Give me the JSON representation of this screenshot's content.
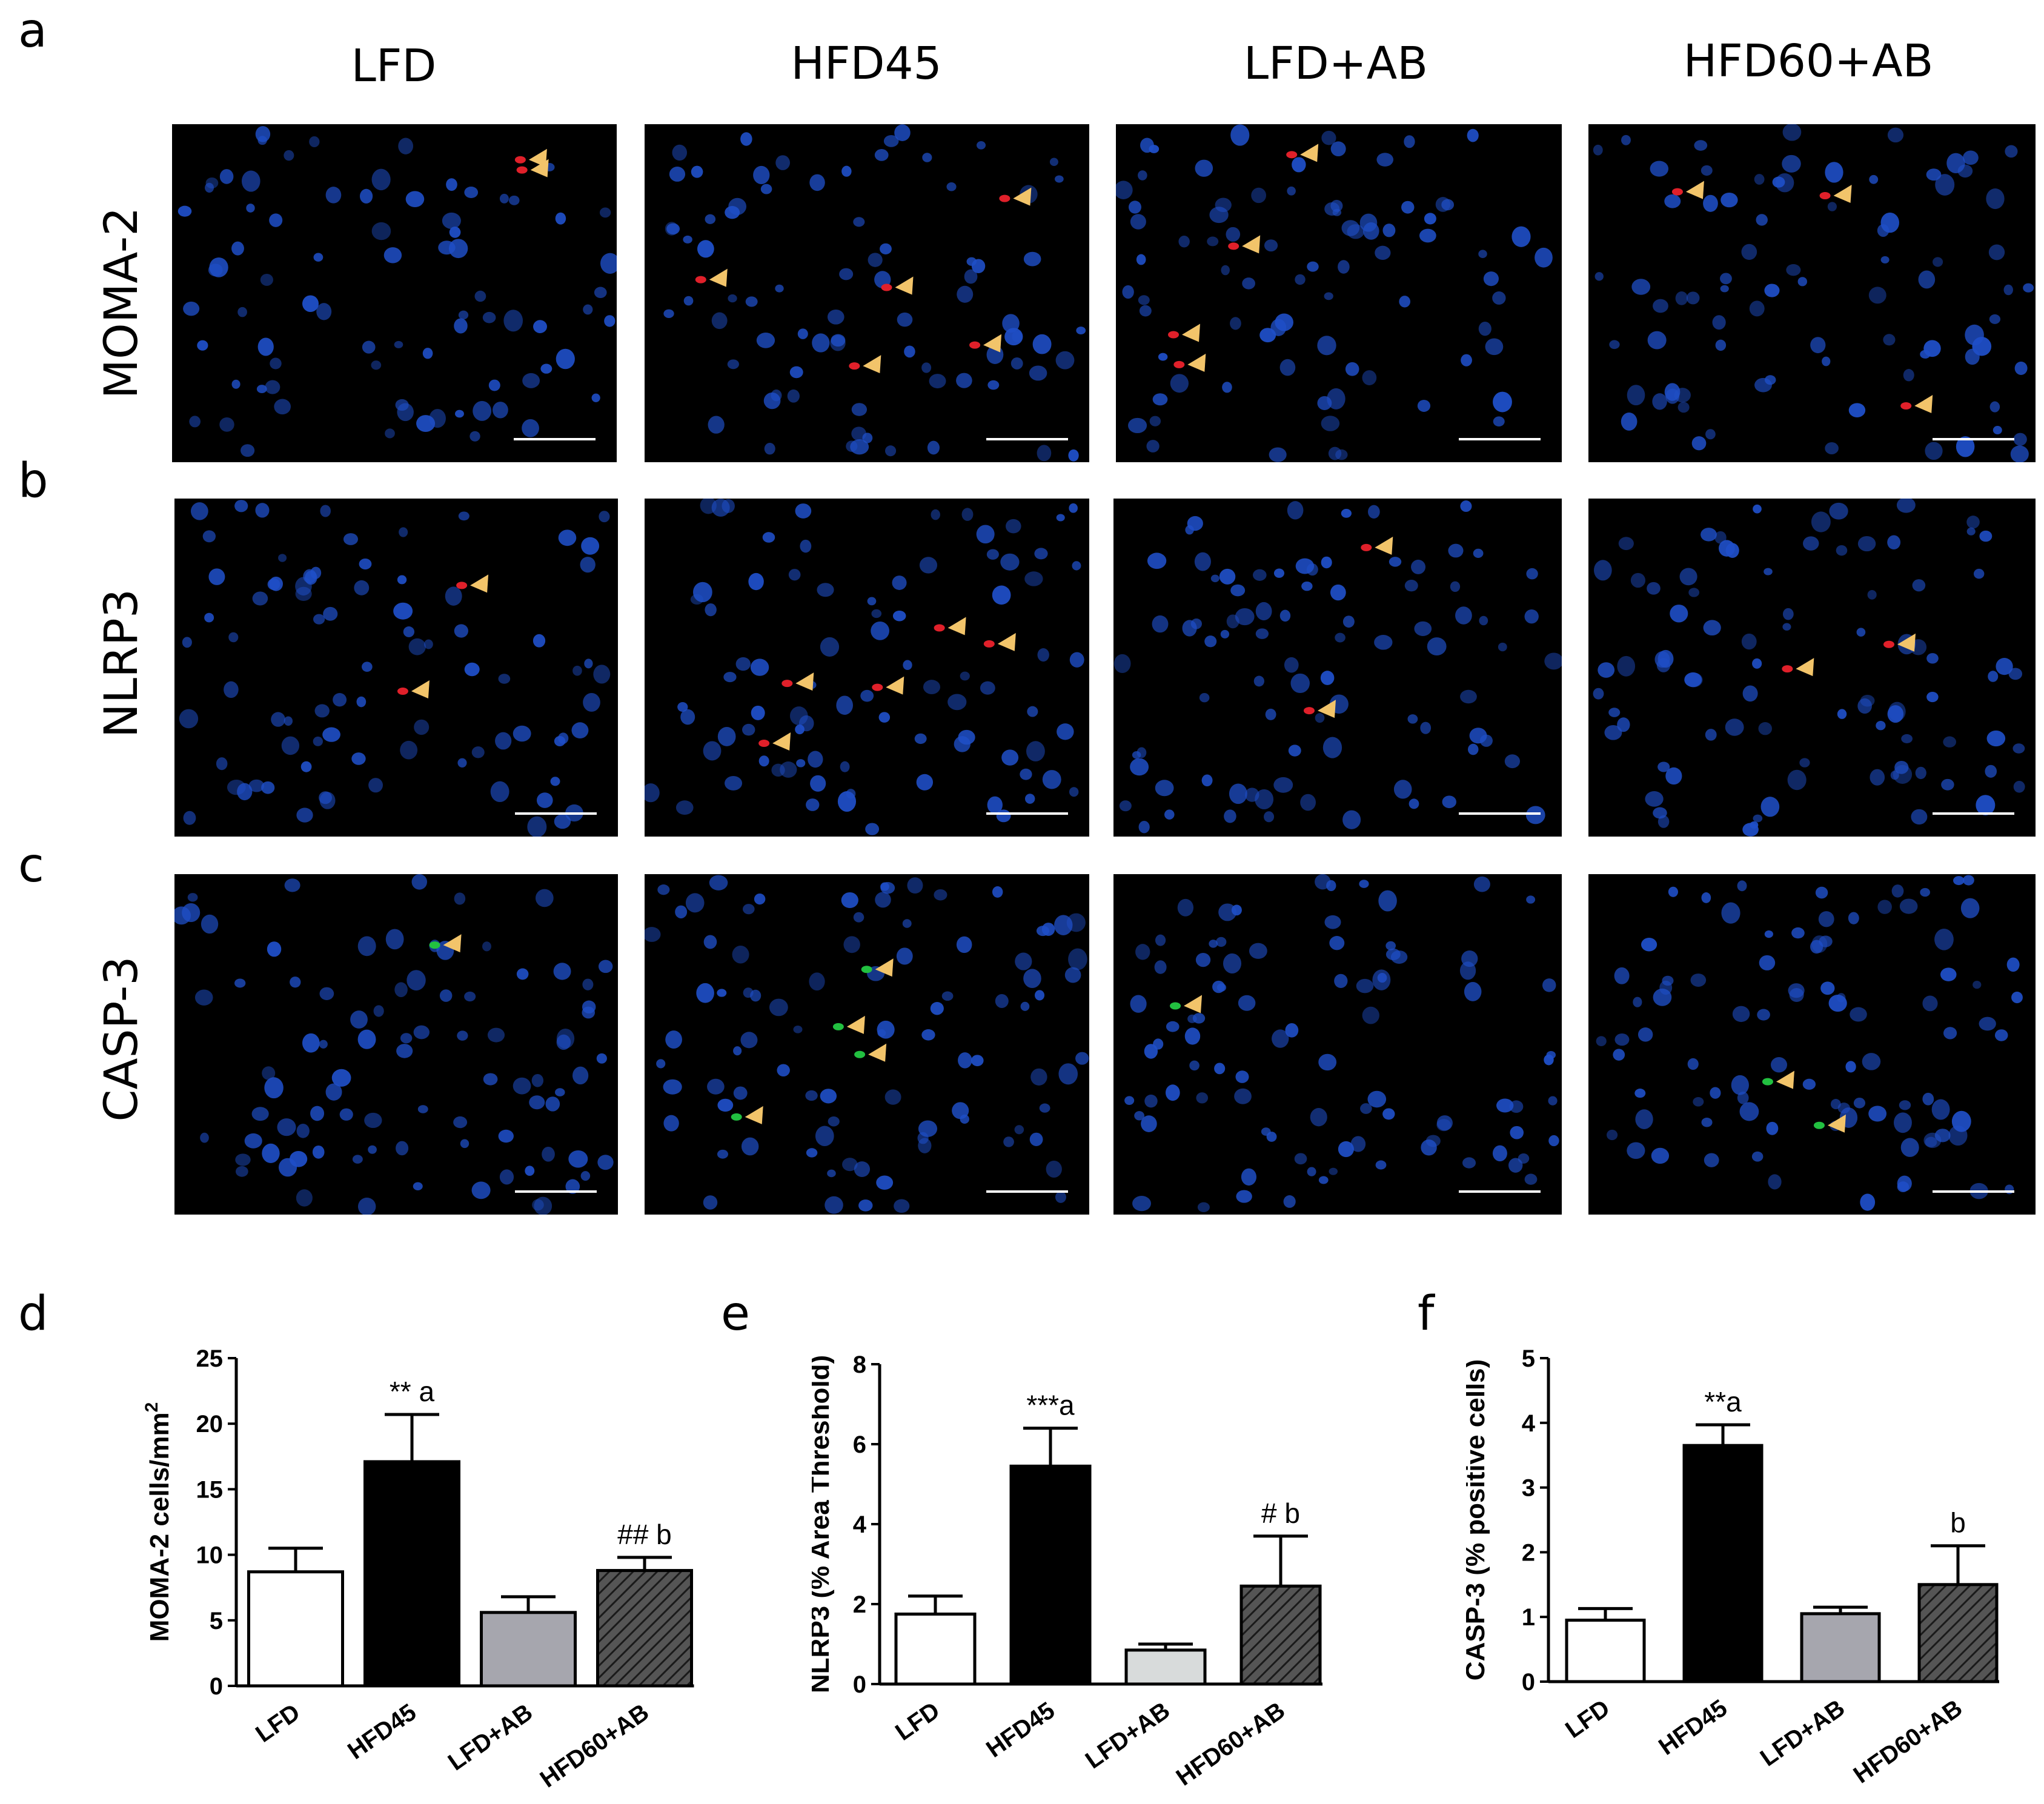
{
  "panel_letters": [
    "a",
    "b",
    "c",
    "d",
    "e",
    "f"
  ],
  "column_headers": [
    "LFD",
    "HFD45",
    "LFD+AB",
    "HFD60+AB"
  ],
  "row_labels": [
    "MOMA-2",
    "NLRP3",
    "CASP-3"
  ],
  "colors": {
    "nucleus": "#1f4fc8",
    "moma_signal": "#e0202a",
    "nlrp3_signal": "#e0202a",
    "casp_signal": "#22c040",
    "arrowhead": "#f2c46a",
    "scale_bar": "#ffffff",
    "bar_lfd": "#ffffff",
    "bar_hfd45": "#000000",
    "bar_lfd_ab_d": "#a6a6ae",
    "bar_lfd_ab_e": "#d8dbdb",
    "bar_hfd60_ab": "#555555"
  },
  "micrograph_arrowheads": [
    [
      2,
      5,
      4,
      3
    ],
    [
      2,
      5,
      2,
      2
    ],
    [
      1,
      4,
      1,
      2
    ]
  ],
  "chart_data": [
    {
      "type": "bar",
      "categories": [
        "LFD",
        "HFD45",
        "LFD+AB",
        "HFD60+AB"
      ],
      "values": [
        8.7,
        17.1,
        5.6,
        8.8
      ],
      "errors": [
        1.8,
        3.6,
        1.2,
        1.0
      ],
      "annotations": [
        "",
        "** a",
        "",
        "## b"
      ],
      "ylabel": "MOMA-2 cells/mm",
      "ylabel_superscript": "2",
      "ylim": [
        0,
        25
      ],
      "yticks": [
        0,
        5,
        10,
        15,
        20,
        25
      ],
      "hatched": [
        false,
        false,
        false,
        true
      ]
    },
    {
      "type": "bar",
      "categories": [
        "LFD",
        "HFD45",
        "LFD+AB",
        "HFD60+AB"
      ],
      "values": [
        1.75,
        5.45,
        0.85,
        2.45
      ],
      "errors": [
        0.45,
        0.95,
        0.15,
        1.25
      ],
      "annotations": [
        "",
        "***a",
        "",
        "# b"
      ],
      "ylabel": "NLRP3 (% Area Threshold)",
      "ylabel_superscript": "",
      "ylim": [
        0,
        8
      ],
      "yticks": [
        0,
        2,
        4,
        6,
        8
      ],
      "hatched": [
        false,
        false,
        false,
        true
      ]
    },
    {
      "type": "bar",
      "categories": [
        "LFD",
        "HFD45",
        "LFD+AB",
        "HFD60+AB"
      ],
      "values": [
        0.95,
        3.65,
        1.05,
        1.5
      ],
      "errors": [
        0.18,
        0.32,
        0.1,
        0.6
      ],
      "annotations": [
        "",
        "**a",
        "",
        "b"
      ],
      "ylabel": "CASP-3 (% positive cells)",
      "ylabel_superscript": "",
      "ylim": [
        0,
        5
      ],
      "yticks": [
        0,
        1,
        2,
        3,
        4,
        5
      ],
      "hatched": [
        false,
        false,
        false,
        true
      ]
    }
  ]
}
